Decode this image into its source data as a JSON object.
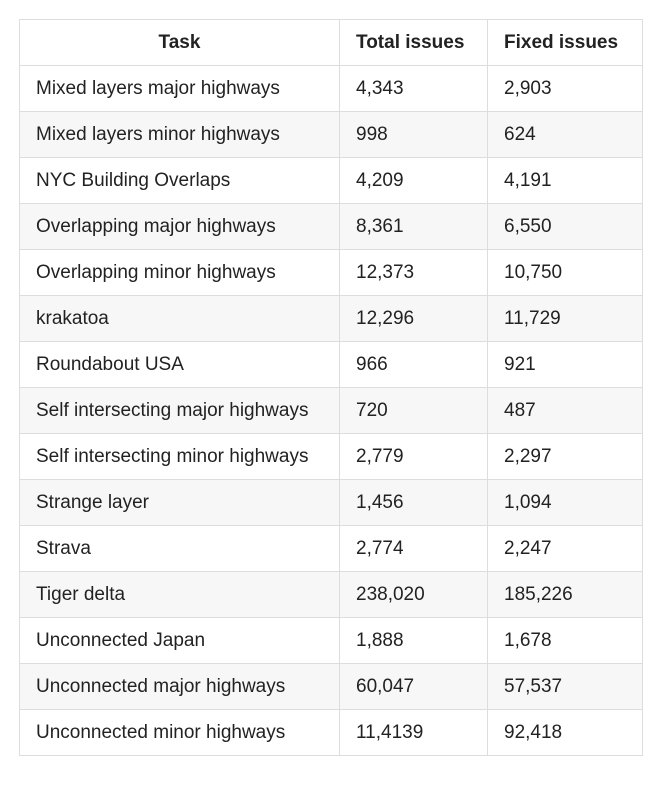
{
  "table": {
    "headers": {
      "task": "Task",
      "total": "Total issues",
      "fixed": "Fixed issues"
    },
    "rows": [
      {
        "task": "Mixed layers major highways",
        "total": "4,343",
        "fixed": "2,903"
      },
      {
        "task": "Mixed layers minor highways",
        "total": "998",
        "fixed": "624"
      },
      {
        "task": "NYC Building Overlaps",
        "total": "4,209",
        "fixed": "4,191"
      },
      {
        "task": "Overlapping major highways",
        "total": "8,361",
        "fixed": "6,550"
      },
      {
        "task": "Overlapping minor highways",
        "total": "12,373",
        "fixed": "10,750"
      },
      {
        "task": "krakatoa",
        "total": "12,296",
        "fixed": "11,729"
      },
      {
        "task": "Roundabout USA",
        "total": "966",
        "fixed": "921"
      },
      {
        "task": "Self intersecting major highways",
        "total": "720",
        "fixed": "487"
      },
      {
        "task": "Self intersecting minor highways",
        "total": "2,779",
        "fixed": "2,297"
      },
      {
        "task": "Strange layer",
        "total": "1,456",
        "fixed": "1,094"
      },
      {
        "task": "Strava",
        "total": "2,774",
        "fixed": "2,247"
      },
      {
        "task": "Tiger delta",
        "total": "238,020",
        "fixed": "185,226"
      },
      {
        "task": "Unconnected Japan",
        "total": "1,888",
        "fixed": "1,678"
      },
      {
        "task": "Unconnected major highways",
        "total": "60,047",
        "fixed": "57,537"
      },
      {
        "task": "Unconnected minor highways",
        "total": "11,4139",
        "fixed": "92,418"
      }
    ]
  }
}
